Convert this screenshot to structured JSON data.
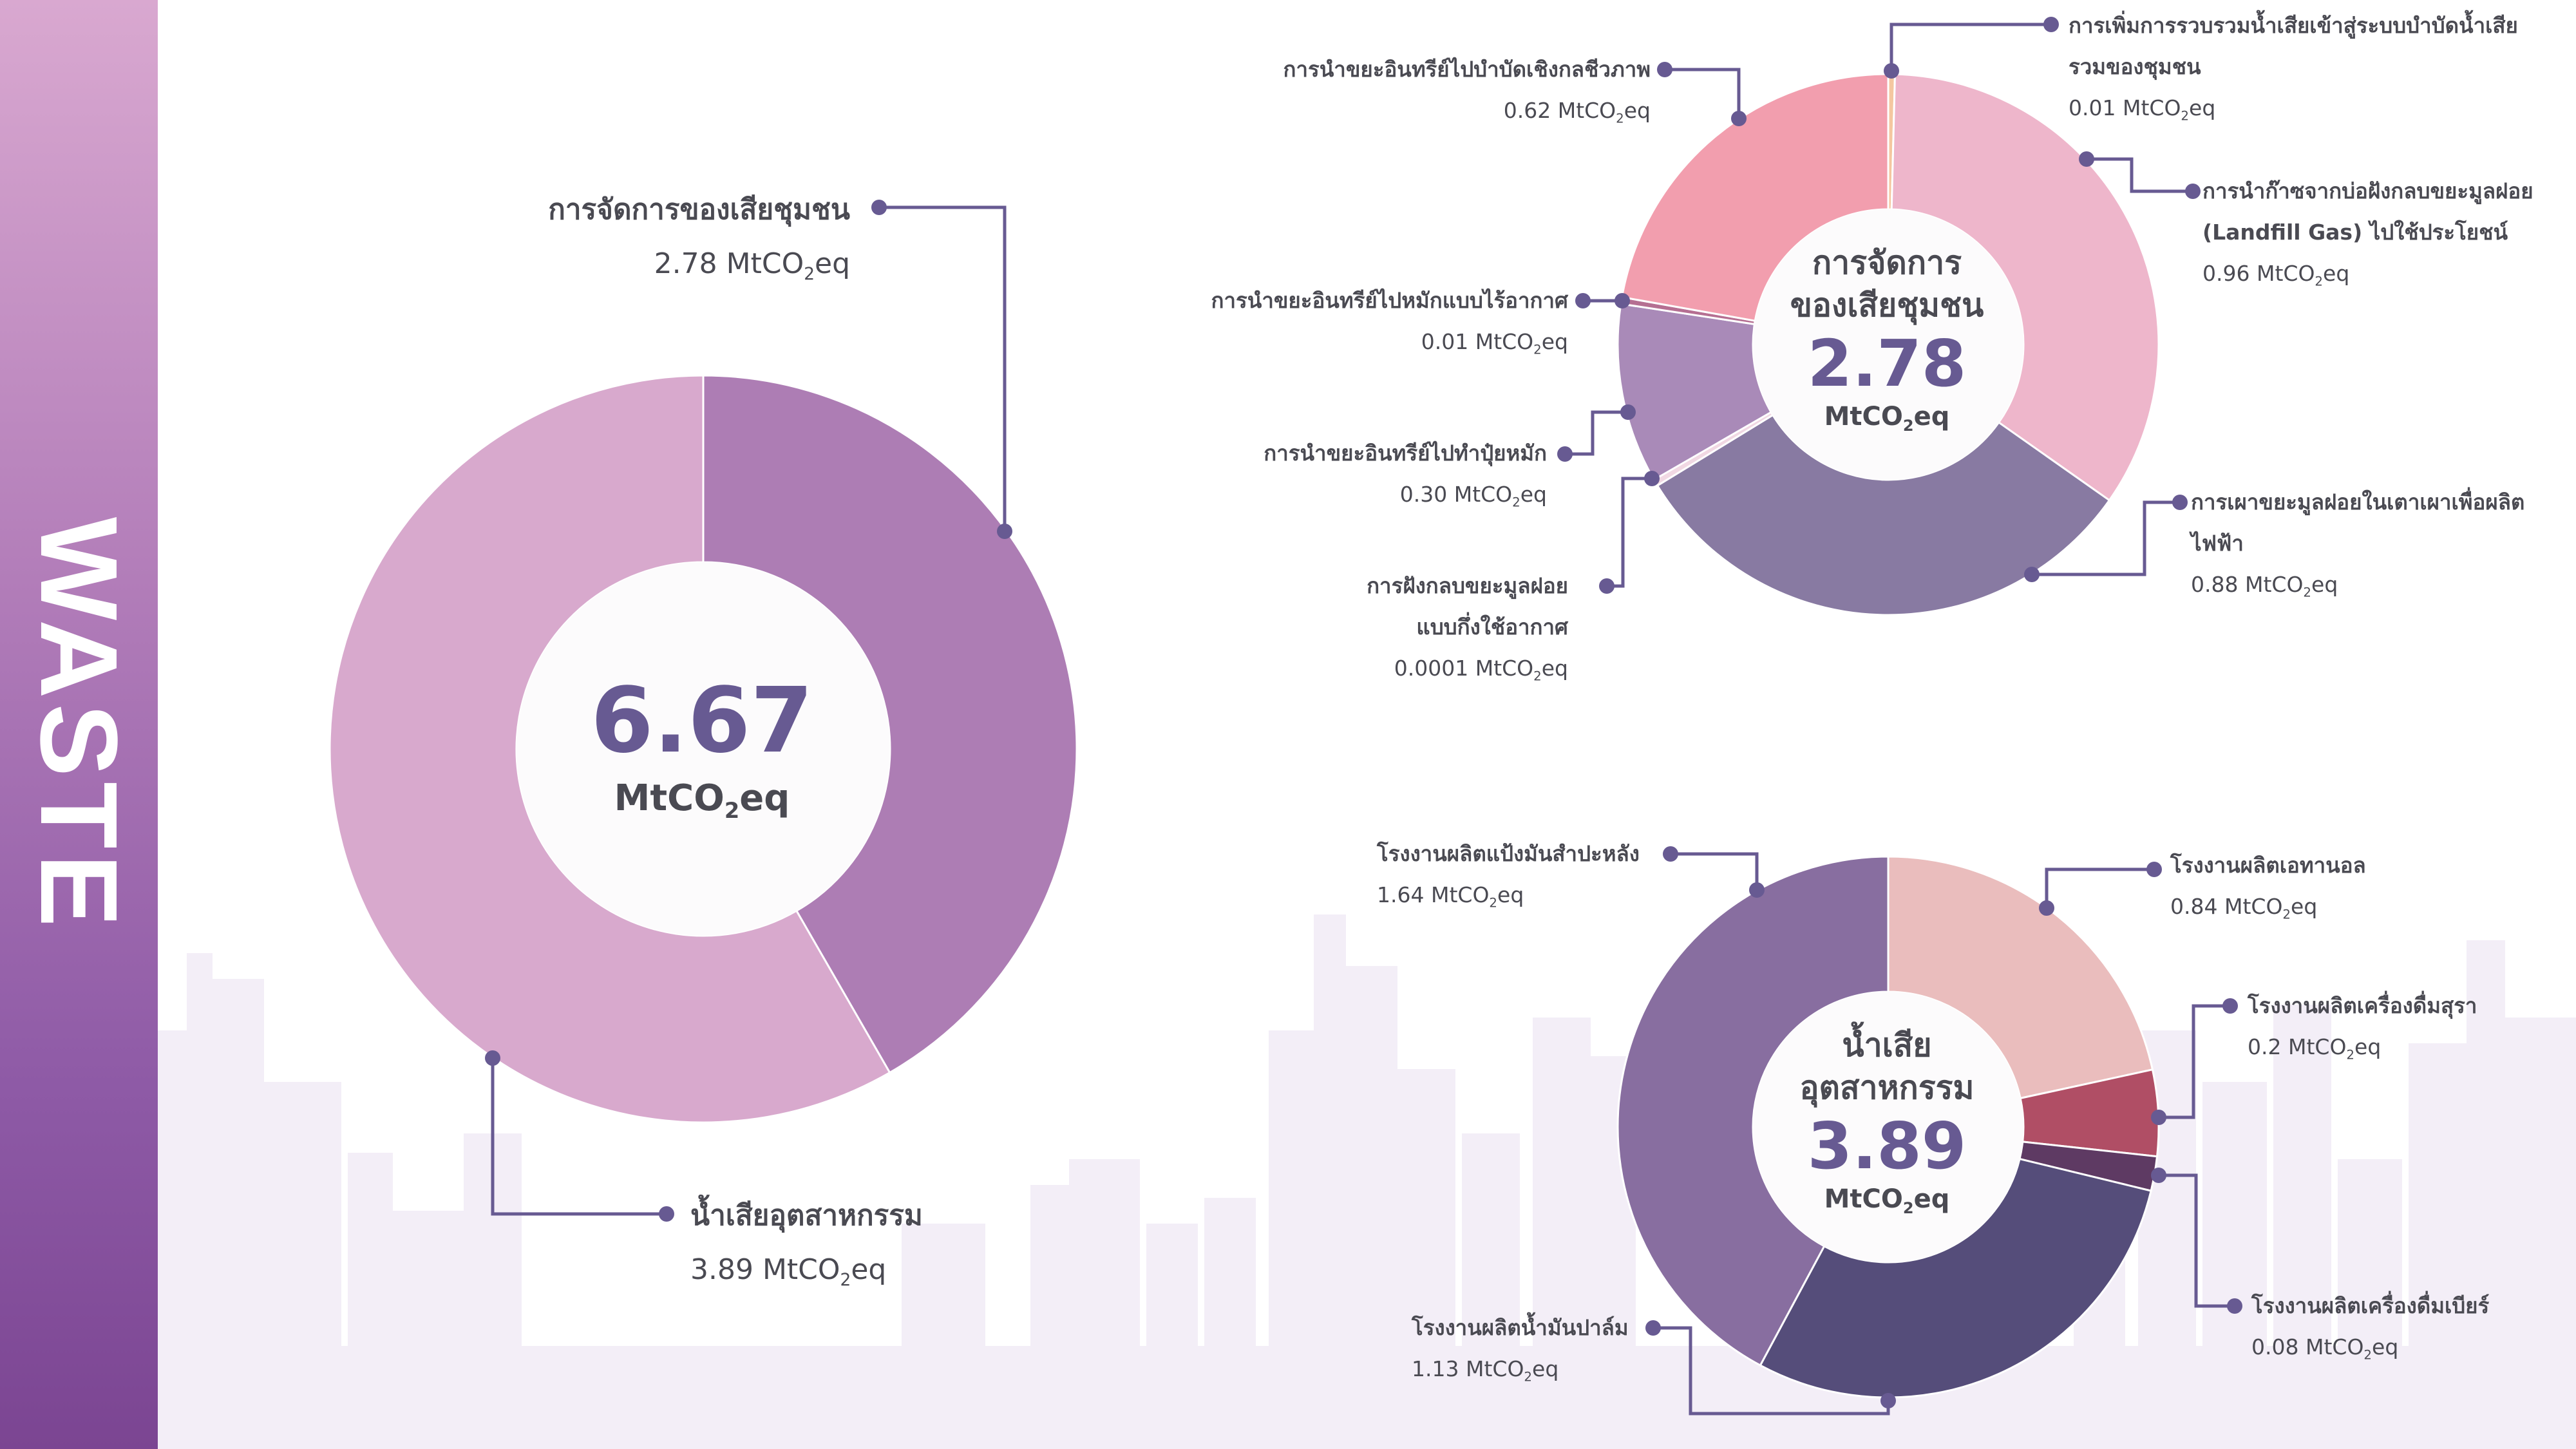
{
  "sidebar": {
    "title": "WASTE",
    "color": "#8e5aa6"
  },
  "overview": {
    "center_value": "6.67",
    "center_unit": "MtCO",
    "center_unit_sub": "2",
    "center_unit_end": "eq",
    "labels": [
      {
        "title": "การจัดการของเสียชุมชน",
        "value": "2.78",
        "unit": "MtCO",
        "sub": "2",
        "end": "eq"
      },
      {
        "title": "น้ำเสียอุตสาหกรรม",
        "value": "3.89",
        "unit": "MtCO",
        "sub": "2",
        "end": "eq"
      }
    ]
  },
  "community": {
    "center_title_1": "การจัดการ",
    "center_title_2": "ของเสียชุมชน",
    "center_value": "2.78",
    "center_unit": "MtCO",
    "center_unit_sub": "2",
    "center_unit_end": "eq",
    "labels": [
      {
        "title": "การเพิ่มการรวบรวมน้ำเสียเข้าสู่ระบบบำบัดน้ำเสีย",
        "title2": "รวมของชุมชน",
        "value": "0.01",
        "unit": "MtCO",
        "sub": "2",
        "end": "eq"
      },
      {
        "title": "การนำก๊าซจากบ่อฝังกลบขยะมูลฝอย",
        "title2": "(Landfill Gas) ไปใช้ประโยชน์",
        "value": "0.96",
        "unit": "MtCO",
        "sub": "2",
        "end": "eq"
      },
      {
        "title": "การเผาขยะมูลฝอยในเตาเผาเพื่อผลิต",
        "title2": "ไฟฟ้า",
        "value": "0.88",
        "unit": "MtCO",
        "sub": "2",
        "end": "eq"
      },
      {
        "title": "การฝังกลบขยะมูลฝอย",
        "title2": "แบบกึ่งใช้อากาศ",
        "value": "0.0001",
        "unit": "MtCO",
        "sub": "2",
        "end": "eq"
      },
      {
        "title": "การนำขยะอินทรีย์ไปทำปุ๋ยหมัก",
        "title2": "",
        "value": "0.30",
        "unit": "MtCO",
        "sub": "2",
        "end": "eq"
      },
      {
        "title": "การนำขยะอินทรีย์ไปหมักแบบไร้อากาศ",
        "title2": "",
        "value": "0.01",
        "unit": "MtCO",
        "sub": "2",
        "end": "eq"
      },
      {
        "title": "การนำขยะอินทรีย์ไปบำบัดเชิงกลชีวภาพ",
        "title2": "",
        "value": "0.62",
        "unit": "MtCO",
        "sub": "2",
        "end": "eq"
      }
    ]
  },
  "industrial": {
    "center_title_1": "น้ำเสีย",
    "center_title_2": "อุตสาหกรรม",
    "center_value": "3.89",
    "center_unit": "MtCO",
    "center_unit_sub": "2",
    "center_unit_end": "eq",
    "labels": [
      {
        "title": "โรงงานผลิตเอทานอล",
        "value": "0.84",
        "unit": "MtCO",
        "sub": "2",
        "end": "eq"
      },
      {
        "title": "โรงงานผลิตเครื่องดื่มสุรา",
        "value": "0.2",
        "unit": "MtCO",
        "sub": "2",
        "end": "eq"
      },
      {
        "title": "โรงงานผลิตเครื่องดื่มเบียร์",
        "value": "0.08",
        "unit": "MtCO",
        "sub": "2",
        "end": "eq"
      },
      {
        "title": "โรงงานผลิตน้ำมันปาล์ม",
        "value": "1.13",
        "unit": "MtCO",
        "sub": "2",
        "end": "eq"
      },
      {
        "title": "โรงงานผลิตแป้งมันสำปะหลัง",
        "value": "1.64",
        "unit": "MtCO",
        "sub": "2",
        "end": "eq"
      }
    ]
  },
  "chart_data": [
    {
      "type": "pie",
      "title": "Waste total (MtCO2eq)",
      "total": 6.67,
      "categories": [
        "การจัดการของเสียชุมชน",
        "น้ำเสียอุตสาหกรรม"
      ],
      "values": [
        2.78,
        3.89
      ],
      "colors": [
        "#ad7db4",
        "#d8a9cd"
      ]
    },
    {
      "type": "pie",
      "title": "การจัดการของเสียชุมชน (MtCO2eq)",
      "total": 2.78,
      "categories": [
        "การเพิ่มการรวบรวมน้ำเสียเข้าสู่ระบบบำบัดน้ำเสียรวมของชุมชน",
        "การนำก๊าซจากบ่อฝังกลบขยะมูลฝอย (Landfill Gas) ไปใช้ประโยชน์",
        "การเผาขยะมูลฝอยในเตาเผาเพื่อผลิตไฟฟ้า",
        "การฝังกลบขยะมูลฝอยแบบกึ่งใช้อากาศ",
        "การนำขยะอินทรีย์ไปทำปุ๋ยหมัก",
        "การนำขยะอินทรีย์ไปหมักแบบไร้อากาศ",
        "การนำขยะอินทรีย์ไปบำบัดเชิงกลชีวภาพ"
      ],
      "values": [
        0.01,
        0.96,
        0.88,
        0.0001,
        0.3,
        0.01,
        0.62
      ],
      "colors": [
        "#f4c7a0",
        "#eeb6cb",
        "#887aa2",
        "#f1d8e3",
        "#a98ab8",
        "#b56f92",
        "#f29eae"
      ]
    },
    {
      "type": "pie",
      "title": "น้ำเสียอุตสาหกรรม (MtCO2eq)",
      "total": 3.89,
      "categories": [
        "โรงงานผลิตเอทานอล",
        "โรงงานผลิตเครื่องดื่มสุรา",
        "โรงงานผลิตเครื่องดื่มเบียร์",
        "โรงงานผลิตน้ำมันปาล์ม",
        "โรงงานผลิตแป้งมันสำปะหลัง"
      ],
      "values": [
        0.84,
        0.2,
        0.08,
        1.13,
        1.64
      ],
      "colors": [
        "#eabdbd",
        "#b04e65",
        "#5e3a63",
        "#554d7a",
        "#886ea0"
      ]
    }
  ]
}
